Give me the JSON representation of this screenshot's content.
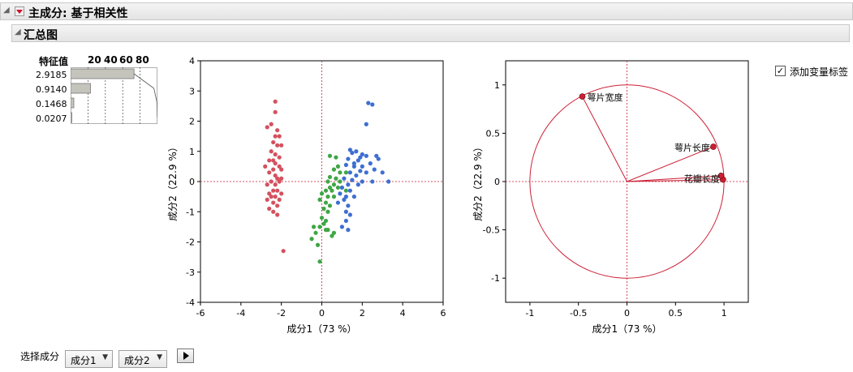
{
  "header": {
    "title": "主成分: 基于相关性",
    "summary_title": "汇总图"
  },
  "eigen": {
    "heading": "特征值",
    "axis_ticks": [
      "20",
      "40",
      "60",
      "80"
    ],
    "values": [
      "2.9185",
      "0.9140",
      "0.1468",
      "0.0207"
    ],
    "percent": [
      73,
      22.9,
      3.7,
      0.5
    ]
  },
  "controls": {
    "show_labels_text": "添加变量标签",
    "show_labels_checked": true,
    "select_label": "选择成分",
    "comp_x": "成分1",
    "comp_y": "成分2"
  },
  "colors": {
    "setosa": "#d4515f",
    "versicolor": "#3fa645",
    "virginica": "#3e6fd1",
    "ref": "#cc1f35"
  },
  "chart_data": [
    {
      "type": "scatter",
      "name": "score",
      "xlabel": "成分1（73 %）",
      "ylabel": "成分2（22.9 %）",
      "xlim": [
        -6,
        6
      ],
      "ylim": [
        -4,
        4
      ],
      "xticks": [
        -6,
        -4,
        -2,
        0,
        2,
        4,
        6
      ],
      "yticks": [
        -4,
        -3,
        -2,
        -1,
        0,
        1,
        2,
        3,
        4
      ],
      "series": [
        {
          "color_key": "setosa",
          "points": [
            [
              -2.3,
              2.65
            ],
            [
              -2.3,
              2.3
            ],
            [
              -2.5,
              1.9
            ],
            [
              -2.7,
              1.8
            ],
            [
              -2.2,
              1.7
            ],
            [
              -2.3,
              1.5
            ],
            [
              -2.1,
              1.5
            ],
            [
              -2.4,
              1.3
            ],
            [
              -2.2,
              1.2
            ],
            [
              -2.0,
              1.2
            ],
            [
              -2.5,
              1.0
            ],
            [
              -2.3,
              0.9
            ],
            [
              -2.1,
              0.8
            ],
            [
              -2.6,
              0.7
            ],
            [
              -2.3,
              0.6
            ],
            [
              -2.1,
              0.5
            ],
            [
              -2.8,
              0.5
            ],
            [
              -2.4,
              0.4
            ],
            [
              -2.0,
              0.4
            ],
            [
              -2.6,
              0.3
            ],
            [
              -2.3,
              0.2
            ],
            [
              -2.2,
              0.1
            ],
            [
              -2.5,
              0.0
            ],
            [
              -2.1,
              0.0
            ],
            [
              -2.7,
              -0.1
            ],
            [
              -2.3,
              -0.1
            ],
            [
              -2.4,
              -0.3
            ],
            [
              -2.2,
              -0.3
            ],
            [
              -2.6,
              -0.4
            ],
            [
              -2.0,
              -0.4
            ],
            [
              -2.5,
              -0.5
            ],
            [
              -2.3,
              -0.5
            ],
            [
              -2.7,
              -0.6
            ],
            [
              -2.1,
              -0.6
            ],
            [
              -2.4,
              -0.7
            ],
            [
              -2.2,
              -0.8
            ],
            [
              -2.6,
              -0.9
            ],
            [
              -2.4,
              -1.0
            ],
            [
              -2.2,
              -1.1
            ],
            [
              -1.9,
              -2.3
            ],
            [
              -2.4,
              0.7
            ],
            [
              -2.0,
              0.1
            ]
          ]
        },
        {
          "color_key": "versicolor",
          "points": [
            [
              0.4,
              0.85
            ],
            [
              0.7,
              0.8
            ],
            [
              0.8,
              0.5
            ],
            [
              0.6,
              0.4
            ],
            [
              0.9,
              0.3
            ],
            [
              1.2,
              0.3
            ],
            [
              0.4,
              0.15
            ],
            [
              0.7,
              0.1
            ],
            [
              0.9,
              0.0
            ],
            [
              0.3,
              0.0
            ],
            [
              0.6,
              -0.1
            ],
            [
              0.8,
              -0.2
            ],
            [
              1.0,
              -0.2
            ],
            [
              0.2,
              -0.3
            ],
            [
              0.5,
              -0.3
            ],
            [
              1.2,
              -0.3
            ],
            [
              0.0,
              -0.4
            ],
            [
              0.3,
              -0.5
            ],
            [
              0.6,
              -0.5
            ],
            [
              -0.1,
              -0.6
            ],
            [
              0.2,
              -0.7
            ],
            [
              0.4,
              -0.8
            ],
            [
              0.1,
              -0.9
            ],
            [
              0.3,
              -1.0
            ],
            [
              0.0,
              -1.2
            ],
            [
              0.2,
              -1.3
            ],
            [
              0.1,
              -1.4
            ],
            [
              -0.1,
              -1.5
            ],
            [
              0.3,
              -1.6
            ],
            [
              0.6,
              -1.7
            ],
            [
              0.5,
              -1.8
            ],
            [
              -0.4,
              -1.5
            ],
            [
              -0.3,
              -1.7
            ],
            [
              -0.5,
              -1.9
            ],
            [
              -0.2,
              -2.1
            ],
            [
              -0.1,
              -2.65
            ],
            [
              0.2,
              -1.6
            ],
            [
              0.4,
              -0.2
            ]
          ]
        },
        {
          "color_key": "virginica",
          "points": [
            [
              2.3,
              2.6
            ],
            [
              2.5,
              2.55
            ],
            [
              2.2,
              1.9
            ],
            [
              1.4,
              1.05
            ],
            [
              1.7,
              1.0
            ],
            [
              1.5,
              0.95
            ],
            [
              2.0,
              0.9
            ],
            [
              2.2,
              0.85
            ],
            [
              2.7,
              0.85
            ],
            [
              2.8,
              0.75
            ],
            [
              1.3,
              0.75
            ],
            [
              1.8,
              0.7
            ],
            [
              2.4,
              0.6
            ],
            [
              1.2,
              0.55
            ],
            [
              1.6,
              0.5
            ],
            [
              2.0,
              0.5
            ],
            [
              2.6,
              0.4
            ],
            [
              1.9,
              0.35
            ],
            [
              1.4,
              0.3
            ],
            [
              2.2,
              0.3
            ],
            [
              3.0,
              0.3
            ],
            [
              1.7,
              0.2
            ],
            [
              1.1,
              0.1
            ],
            [
              1.5,
              0.05
            ],
            [
              3.3,
              0.0
            ],
            [
              2.0,
              0.0
            ],
            [
              1.3,
              -0.1
            ],
            [
              1.8,
              -0.1
            ],
            [
              1.0,
              -0.2
            ],
            [
              1.4,
              -0.3
            ],
            [
              0.9,
              -0.4
            ],
            [
              1.2,
              -0.5
            ],
            [
              1.6,
              -0.5
            ],
            [
              1.1,
              -0.6
            ],
            [
              0.8,
              -0.7
            ],
            [
              1.3,
              -0.8
            ],
            [
              1.2,
              -1.0
            ],
            [
              1.4,
              -1.1
            ],
            [
              1.2,
              -1.3
            ],
            [
              1.0,
              -1.5
            ],
            [
              1.3,
              -1.6
            ],
            [
              2.5,
              0.0
            ],
            [
              1.9,
              0.8
            ],
            [
              1.6,
              0.6
            ]
          ]
        }
      ]
    },
    {
      "type": "scatter",
      "name": "loading",
      "xlabel": "成分1（73 %）",
      "ylabel": "成分2（22.9 %）",
      "xlim": [
        -1.25,
        1.25
      ],
      "ylim": [
        -1.25,
        1.25
      ],
      "xticks": [
        -1.0,
        -0.5,
        0,
        0.5,
        1.0
      ],
      "yticks": [
        -1.0,
        -0.5,
        0,
        0.5,
        1.0
      ],
      "unit_circle": true,
      "points": [
        {
          "label": "萼片宽度",
          "x": -0.46,
          "y": 0.88
        },
        {
          "label": "萼片长度",
          "x": 0.89,
          "y": 0.36
        },
        {
          "label": "花瓣长度",
          "x": 0.99,
          "y": 0.02
        },
        {
          "label": "花瓣宽度",
          "x": 0.97,
          "y": 0.06
        }
      ]
    }
  ]
}
